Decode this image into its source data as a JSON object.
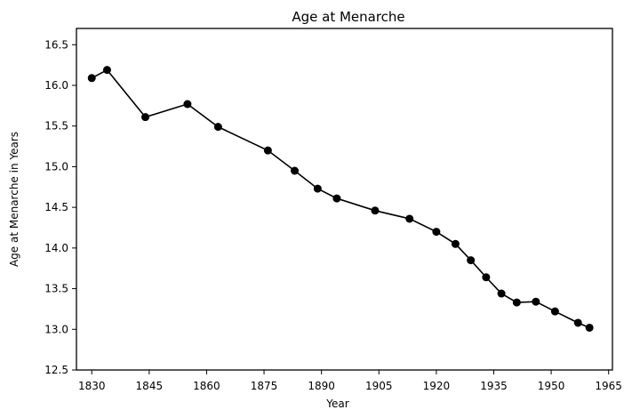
{
  "chart_data": {
    "type": "line",
    "title": "Age at Menarche",
    "xlabel": "Year",
    "ylabel": "Age at Menarche in Years",
    "xlim": [
      1826,
      1966
    ],
    "ylim": [
      12.5,
      16.7
    ],
    "xticks": [
      1830,
      1845,
      1860,
      1875,
      1890,
      1905,
      1920,
      1935,
      1950,
      1965
    ],
    "yticks": [
      12.5,
      13.0,
      13.5,
      14.0,
      14.5,
      15.0,
      15.5,
      16.0,
      16.5
    ],
    "grid": false,
    "series": [
      {
        "color": "#000000",
        "marker": "circle",
        "x": [
          1830,
          1834,
          1844,
          1855,
          1863,
          1876,
          1883,
          1889,
          1894,
          1904,
          1913,
          1920,
          1925,
          1929,
          1933,
          1937,
          1941,
          1946,
          1951,
          1957,
          1960
        ],
        "y": [
          16.09,
          16.19,
          15.61,
          15.77,
          15.49,
          15.2,
          14.95,
          14.73,
          14.61,
          14.46,
          14.36,
          14.2,
          14.05,
          13.85,
          13.64,
          13.44,
          13.33,
          13.34,
          13.22,
          13.08,
          13.02
        ]
      }
    ]
  }
}
